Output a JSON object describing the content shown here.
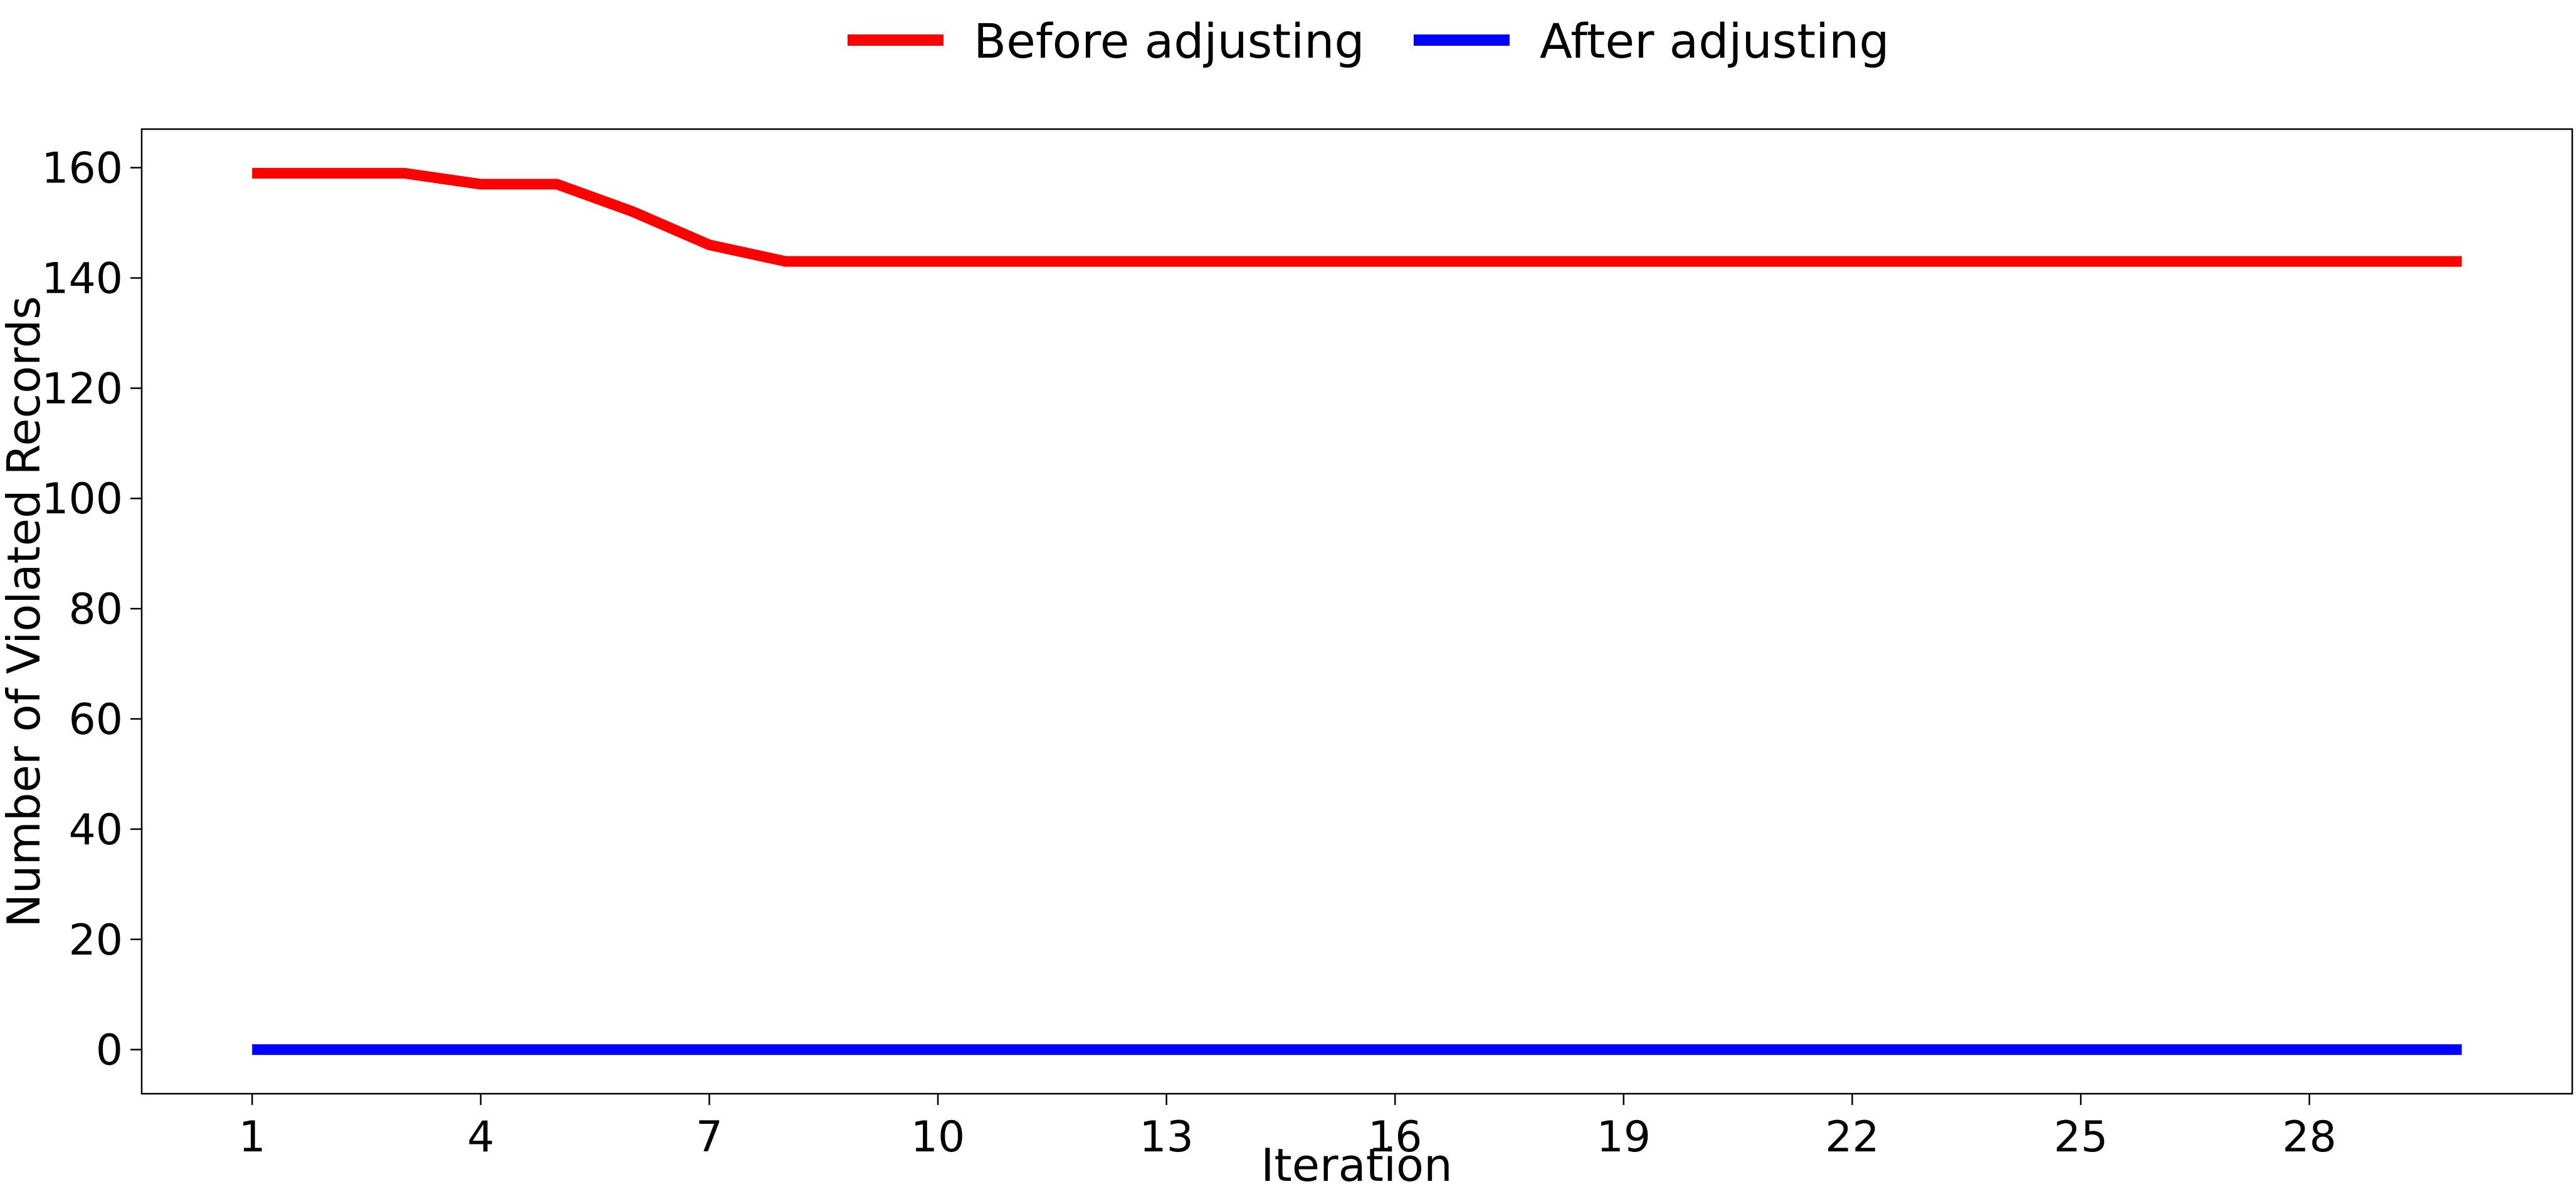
{
  "chart_data": {
    "type": "line",
    "title": "",
    "xlabel": "Iteration",
    "ylabel": "Number of Violated Records",
    "x": [
      1,
      2,
      3,
      4,
      5,
      6,
      7,
      8,
      9,
      10,
      11,
      12,
      13,
      14,
      15,
      16,
      17,
      18,
      19,
      20,
      21,
      22,
      23,
      24,
      25,
      26,
      27,
      28,
      29,
      30
    ],
    "x_ticks": [
      "1",
      "4",
      "7",
      "10",
      "13",
      "16",
      "19",
      "22",
      "25",
      "28"
    ],
    "y_ticks": [
      "0",
      "20",
      "40",
      "60",
      "80",
      "100",
      "120",
      "140",
      "160"
    ],
    "xlim": [
      -0.45,
      31.45
    ],
    "ylim": [
      -8,
      167
    ],
    "grid": false,
    "legend_position": "top-center",
    "series": [
      {
        "name": "Before adjusting",
        "color": "#ff0000",
        "values": [
          159,
          159,
          159,
          157,
          157,
          152,
          146,
          143,
          143,
          143,
          143,
          143,
          143,
          143,
          143,
          143,
          143,
          143,
          143,
          143,
          143,
          143,
          143,
          143,
          143,
          143,
          143,
          143,
          143,
          143
        ]
      },
      {
        "name": "After adjusting",
        "color": "#0000ff",
        "values": [
          0,
          0,
          0,
          0,
          0,
          0,
          0,
          0,
          0,
          0,
          0,
          0,
          0,
          0,
          0,
          0,
          0,
          0,
          0,
          0,
          0,
          0,
          0,
          0,
          0,
          0,
          0,
          0,
          0,
          0
        ]
      }
    ]
  }
}
